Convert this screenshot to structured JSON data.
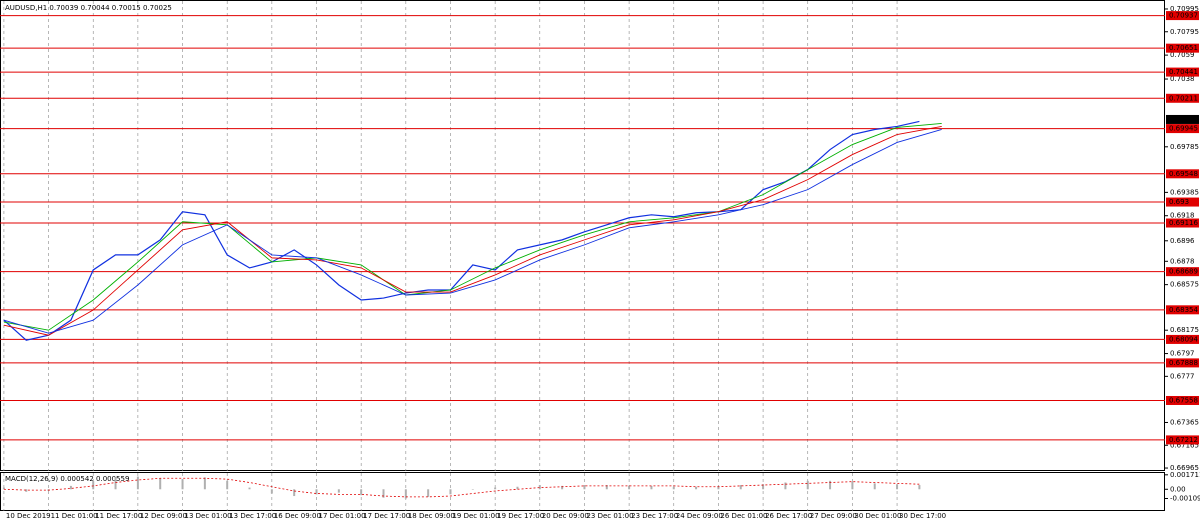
{
  "chart_data": [
    {
      "type": "line",
      "title": "AUDUSD,H1  0.70039 0.70044 0.70015 0.70025",
      "xlim": [
        -1.4,
        416
      ],
      "ylim": [
        0.66939,
        0.71065
      ],
      "xticks": [
        {
          "value": 0,
          "label": "10 Dec 2019"
        },
        {
          "value": 16,
          "label": "11 Dec 01:00"
        },
        {
          "value": 32,
          "label": "11 Dec 17:00"
        },
        {
          "value": 48,
          "label": "12 Dec 09:00"
        },
        {
          "value": 64,
          "label": "13 Dec 01:00"
        },
        {
          "value": 80,
          "label": "13 Dec 17:00"
        },
        {
          "value": 96,
          "label": "16 Dec 09:00"
        },
        {
          "value": 112,
          "label": "17 Dec 01:00"
        },
        {
          "value": 128,
          "label": "17 Dec 17:00"
        },
        {
          "value": 144,
          "label": "18 Dec 09:00"
        },
        {
          "value": 160,
          "label": "19 Dec 01:00"
        },
        {
          "value": 176,
          "label": "19 Dec 17:00"
        },
        {
          "value": 192,
          "label": "20 Dec 09:00"
        },
        {
          "value": 208,
          "label": "23 Dec 01:00"
        },
        {
          "value": 224,
          "label": "23 Dec 17:00"
        },
        {
          "value": 240,
          "label": "24 Dec 09:00"
        },
        {
          "value": 256,
          "label": "26 Dec 01:00"
        },
        {
          "value": 272,
          "label": "26 Dec 17:00"
        },
        {
          "value": 288,
          "label": "27 Dec 09:00"
        },
        {
          "value": 304,
          "label": "30 Dec 01:00"
        },
        {
          "value": 320,
          "label": "30 Dec 17:00"
        }
      ],
      "yticks": [
        0.70995,
        0.70795,
        0.7059,
        0.7038,
        0.69785,
        0.69385,
        0.6918,
        0.6896,
        0.6878,
        0.68575,
        0.68175,
        0.6797,
        0.6777,
        0.67365,
        0.67165,
        0.66965
      ],
      "grid": true,
      "levels": [
        0.70937,
        0.70651,
        0.70441,
        0.70211,
        0.69945,
        0.69548,
        0.693,
        0.69116,
        0.68689,
        0.68354,
        0.68094,
        0.67888,
        0.67558,
        0.67212
      ],
      "level_color": "#e00000",
      "last_price": 0.70025,
      "series": [
        {
          "color": "#1030e0",
          "x": [
            0,
            8,
            16,
            24,
            32,
            40,
            48,
            56,
            64,
            72,
            80,
            88,
            96,
            104,
            112,
            120,
            128,
            136,
            144,
            152,
            160,
            168,
            176,
            184,
            192,
            200,
            208,
            216,
            224,
            232,
            240,
            248,
            256,
            264,
            272,
            280,
            288,
            296,
            304,
            312,
            320,
            328
          ],
          "values": [
            0.68263,
            0.68087,
            0.68131,
            0.68263,
            0.68704,
            0.68836,
            0.68836,
            0.68968,
            0.69215,
            0.69188,
            0.68836,
            0.68722,
            0.68774,
            0.6888,
            0.68748,
            0.68572,
            0.6844,
            0.68457,
            0.68501,
            0.68528,
            0.68528,
            0.68748,
            0.68704,
            0.6888,
            0.68924,
            0.68968,
            0.69039,
            0.691,
            0.69162,
            0.69188,
            0.69171,
            0.69206,
            0.69215,
            0.69233,
            0.69409,
            0.69479,
            0.69585,
            0.69761,
            0.69893,
            0.69937,
            0.69964,
            0.70008
          ]
        },
        {
          "color": "#00b000",
          "x": [
            0,
            16,
            32,
            48,
            64,
            80,
            96,
            112,
            128,
            144,
            160,
            176,
            192,
            208,
            224,
            240,
            256,
            272,
            288,
            304,
            320,
            336
          ],
          "values": [
            0.68246,
            0.68175,
            0.6844,
            0.68774,
            0.69127,
            0.691,
            0.68774,
            0.6881,
            0.68748,
            0.68484,
            0.68528,
            0.68722,
            0.6888,
            0.69012,
            0.69127,
            0.69162,
            0.69215,
            0.69365,
            0.69585,
            0.69805,
            0.69955,
            0.6999
          ]
        },
        {
          "color": "#e00000",
          "x": [
            0,
            16,
            32,
            48,
            64,
            80,
            96,
            112,
            128,
            144,
            160,
            176,
            192,
            208,
            224,
            240,
            256,
            272,
            288,
            304,
            320,
            336
          ],
          "values": [
            0.68219,
            0.68131,
            0.68352,
            0.68704,
            0.69056,
            0.69127,
            0.6881,
            0.68792,
            0.68722,
            0.6851,
            0.6851,
            0.6866,
            0.68836,
            0.68968,
            0.691,
            0.69144,
            0.69215,
            0.69321,
            0.69497,
            0.69717,
            0.69893,
            0.69964
          ]
        },
        {
          "color": "#1030e0",
          "x": [
            0,
            16,
            32,
            48,
            64,
            80,
            96,
            112,
            128,
            144,
            160,
            176,
            192,
            208,
            224,
            240,
            256,
            272,
            288,
            304,
            320,
            336
          ],
          "values": [
            0.68263,
            0.68149,
            0.68263,
            0.68572,
            0.68924,
            0.691,
            0.68836,
            0.6881,
            0.6866,
            0.68484,
            0.68501,
            0.68616,
            0.68792,
            0.68924,
            0.69074,
            0.69127,
            0.69188,
            0.69277,
            0.69409,
            0.69629,
            0.69823,
            0.69937
          ]
        }
      ]
    },
    {
      "type": "macd",
      "title": "MACD(12,26,9) 0.000542 0.000559",
      "xlim": [
        -1.4,
        416
      ],
      "ylim": [
        -0.00257,
        0.001925
      ],
      "yticks": [
        0.001711,
        {
          "value": 0,
          "label": "0.00"
        },
        -0.001093
      ],
      "x": [
        0,
        8,
        16,
        24,
        32,
        40,
        48,
        56,
        64,
        72,
        80,
        88,
        96,
        104,
        112,
        120,
        128,
        136,
        144,
        152,
        160,
        168,
        176,
        184,
        192,
        200,
        208,
        216,
        224,
        232,
        240,
        248,
        256,
        264,
        272,
        280,
        288,
        296,
        304,
        312,
        320,
        328
      ],
      "histogram": {
        "color": "#b0b0b0",
        "values": [
          0.0002,
          -0.0003,
          -0.0002,
          0.0004,
          0.001,
          0.0014,
          0.0015,
          0.0013,
          0.0012,
          0.0014,
          0.001,
          0.0002,
          -0.0005,
          -0.0008,
          -0.0006,
          -0.0004,
          -0.0007,
          -0.001,
          -0.0011,
          -0.0009,
          -0.0006,
          0,
          0.0002,
          0.0003,
          0.0005,
          0.0004,
          0.0005,
          0.0005,
          0.0004,
          0.0004,
          0.0003,
          0.0003,
          0.0004,
          0.0005,
          0.0006,
          0.0008,
          0.001,
          0.001,
          0.0009,
          0.0007,
          0.0006,
          0.0005
        ]
      },
      "signal": {
        "color": "#e00000",
        "values": [
          0,
          -0.0001,
          -0.0001,
          0.0001,
          0.0004,
          0.0008,
          0.0011,
          0.0013,
          0.0013,
          0.0013,
          0.0012,
          0.0008,
          0.0003,
          -0.0002,
          -0.0005,
          -0.0006,
          -0.0006,
          -0.0008,
          -0.0009,
          -0.0009,
          -0.0008,
          -0.0005,
          -0.0002,
          0,
          0.0002,
          0.0003,
          0.0004,
          0.0004,
          0.0004,
          0.0004,
          0.0004,
          0.0003,
          0.0003,
          0.0004,
          0.0005,
          0.0006,
          0.0007,
          0.0008,
          0.0009,
          0.0008,
          0.0007,
          0.0006
        ]
      }
    }
  ]
}
